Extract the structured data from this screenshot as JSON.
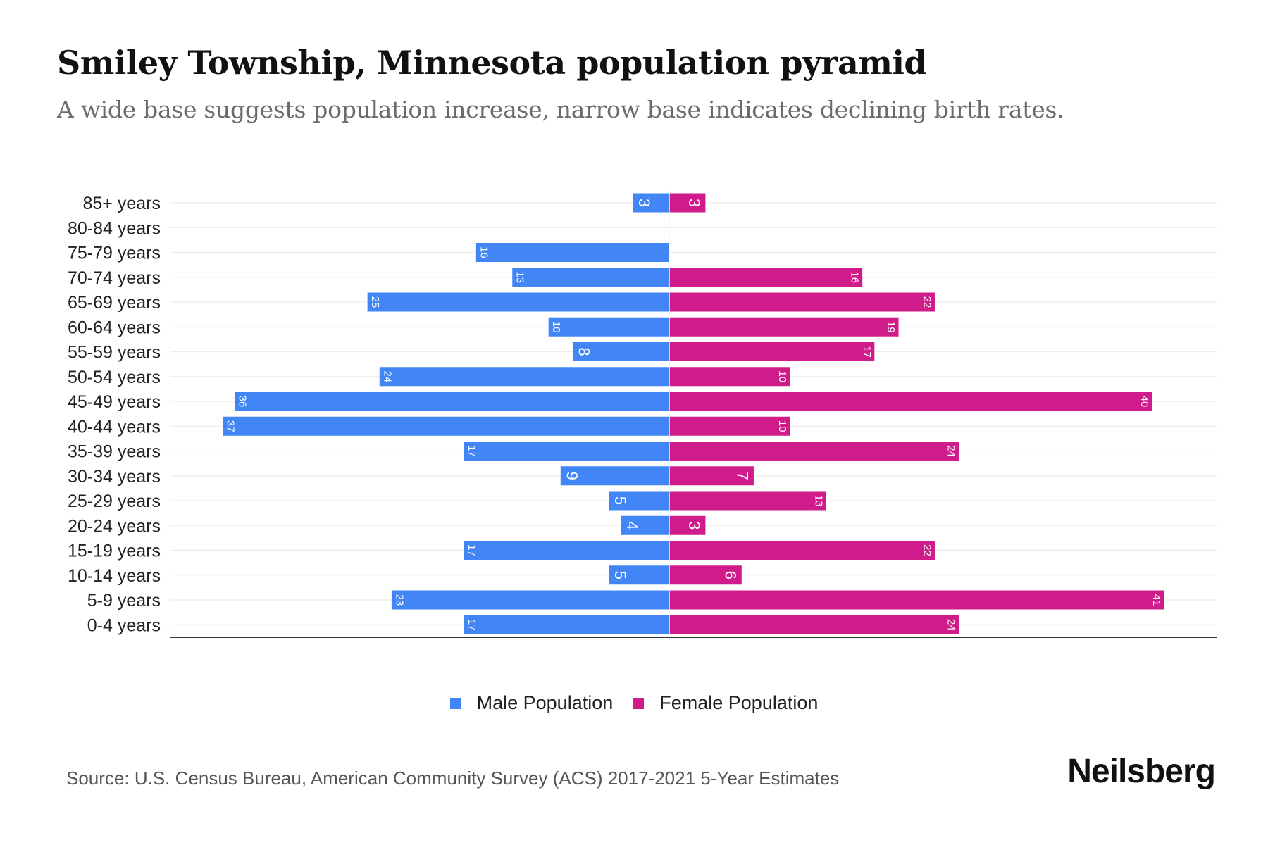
{
  "header": {
    "title": "Smiley Township, Minnesota population pyramid",
    "subtitle": "A wide base suggests population increase, narrow base indicates declining birth rates."
  },
  "chart_data": {
    "type": "bar",
    "orientation": "horizontal-diverging",
    "title": "Smiley Township, Minnesota population pyramid",
    "categories": [
      "85+ years",
      "80-84 years",
      "75-79 years",
      "70-74 years",
      "65-69 years",
      "60-64 years",
      "55-59 years",
      "50-54 years",
      "45-49 years",
      "40-44 years",
      "35-39 years",
      "30-34 years",
      "25-29 years",
      "20-24 years",
      "15-19 years",
      "10-14 years",
      "5-9 years",
      "0-4 years"
    ],
    "series": [
      {
        "name": "Male Population",
        "color": "#4285f4",
        "side": "left",
        "values": [
          3,
          0,
          16,
          13,
          25,
          10,
          8,
          24,
          36,
          37,
          17,
          9,
          5,
          4,
          17,
          5,
          23,
          17
        ]
      },
      {
        "name": "Female Population",
        "color": "#d01c8b",
        "side": "right",
        "values": [
          3,
          0,
          0,
          16,
          22,
          19,
          17,
          10,
          40,
          10,
          24,
          7,
          13,
          3,
          22,
          6,
          41,
          24
        ]
      }
    ],
    "xlabel": "",
    "ylabel": "",
    "xlim": [
      -41.5,
      45.3
    ],
    "grid": true,
    "data_labels": true,
    "legend": "bottom-center"
  },
  "legend": {
    "items": [
      {
        "label": "Male Population",
        "color": "#4285f4"
      },
      {
        "label": "Female Population",
        "color": "#d01c8b"
      }
    ]
  },
  "footer": {
    "source": "Source: U.S. Census Bureau, American Community Survey (ACS) 2017-2021 5-Year Estimates",
    "logo": "Neilsberg"
  }
}
